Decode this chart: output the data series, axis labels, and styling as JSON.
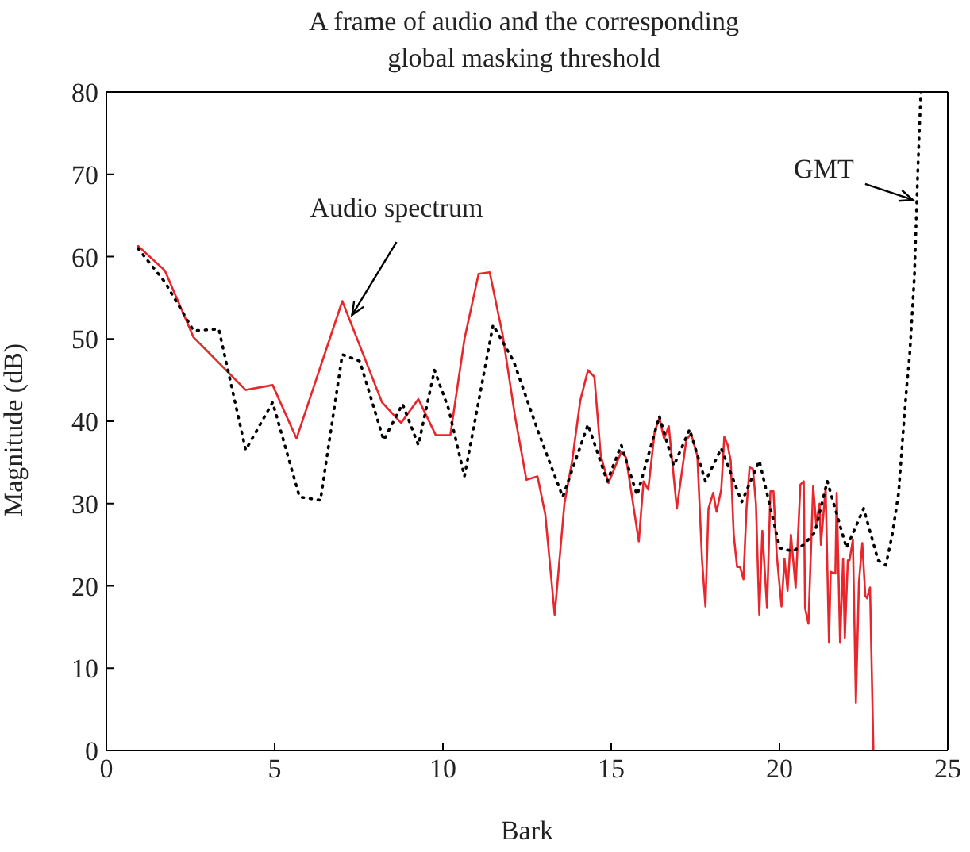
{
  "chart_data": {
    "type": "line",
    "title": "A frame of audio and the corresponding global masking threshold",
    "xlabel": "Bark",
    "ylabel": "Magnitude (dB)",
    "xlim": [
      0,
      25
    ],
    "xticks": [
      0,
      5,
      10,
      15,
      20,
      25
    ],
    "ylim": [
      0,
      80
    ],
    "yticks": [
      0,
      10,
      20,
      30,
      40,
      50,
      60,
      70,
      80
    ],
    "grid": false,
    "legend": false,
    "marker": "none",
    "series": [
      {
        "color": "#e8262b",
        "line_style": "solid",
        "x": [
          0.94,
          1.74,
          2.59,
          4.14,
          4.94,
          5.65,
          7.01,
          8.19,
          8.76,
          9.27,
          9.79,
          10.22,
          10.64,
          11.06,
          11.39,
          11.77,
          12.15,
          12.48,
          12.81,
          13.04,
          13.32,
          13.61,
          13.84,
          14.08,
          14.31,
          14.5,
          14.69,
          14.92,
          15.3,
          15.44,
          15.82,
          15.96,
          16.1,
          16.29,
          16.43,
          16.57,
          16.71,
          16.95,
          17.23,
          17.37,
          17.56,
          17.7,
          17.8,
          17.89,
          18.03,
          18.13,
          18.27,
          18.36,
          18.46,
          18.55,
          18.64,
          18.74,
          18.83,
          18.93,
          19.02,
          19.11,
          19.21,
          19.3,
          19.4,
          19.49,
          19.63,
          19.73,
          19.82,
          19.92,
          20.06,
          20.15,
          20.24,
          20.34,
          20.48,
          20.62,
          20.72,
          20.76,
          20.86,
          21,
          21.09,
          21.19,
          21.23,
          21.37,
          21.47,
          21.52,
          21.66,
          21.7,
          21.8,
          21.89,
          21.94,
          22.03,
          22.08,
          22.18,
          22.27,
          22.36,
          22.46,
          22.55,
          22.6,
          22.69,
          22.79
        ],
        "values": [
          61.3,
          58.3,
          50.2,
          43.8,
          44.4,
          37.9,
          54.6,
          42.3,
          39.8,
          42.7,
          38.3,
          38.3,
          50,
          57.9,
          58.1,
          50.6,
          40.4,
          32.9,
          33.3,
          28.7,
          16.5,
          30,
          35.2,
          42.5,
          46.2,
          45.4,
          35.8,
          32.5,
          36.3,
          35.6,
          25.4,
          32.7,
          31.7,
          38.7,
          40.4,
          37.9,
          39.4,
          29.4,
          37.7,
          38.5,
          35.8,
          23.1,
          17.5,
          29.4,
          31.3,
          29,
          31.7,
          38.1,
          37.1,
          35.2,
          26.2,
          22.3,
          22.3,
          20.8,
          29.4,
          34.4,
          34.2,
          30,
          16.5,
          26.7,
          17.3,
          31.5,
          31.5,
          23.7,
          17.5,
          23.3,
          19.4,
          26.2,
          19.8,
          32.3,
          32.7,
          17.3,
          15.4,
          32.1,
          27.5,
          30,
          25,
          31.9,
          13.1,
          21.7,
          21.5,
          31.3,
          13.1,
          23.3,
          13.7,
          23.1,
          23.1,
          25.6,
          5.8,
          20.4,
          25.2,
          18.8,
          18.5,
          19.8,
          0
        ]
      },
      {
        "color": "#000000",
        "line_style": "dotted",
        "x": [
          0.94,
          1.74,
          2.59,
          3.34,
          4.14,
          4.94,
          5.74,
          6.36,
          7.01,
          7.53,
          8.24,
          8.8,
          9.27,
          9.75,
          10.17,
          10.64,
          11.49,
          12.1,
          12.85,
          13.56,
          14.31,
          14.88,
          15.3,
          15.77,
          16.43,
          16.86,
          17.33,
          17.8,
          18.27,
          18.88,
          19.4,
          20.01,
          20.39,
          20.72,
          21.05,
          21.42,
          21.99,
          22.5,
          22.93,
          23.16,
          23.35,
          23.54,
          23.68,
          23.78,
          23.87,
          24.01,
          24.11,
          24.2
        ],
        "values": [
          61,
          56.9,
          51,
          51.2,
          36.5,
          42.3,
          30.8,
          30.4,
          48.1,
          47.3,
          37.7,
          42.1,
          37.1,
          46.2,
          41.5,
          33.3,
          51.7,
          47.3,
          38.5,
          30.8,
          39.6,
          32.7,
          37.1,
          31,
          40.6,
          34.6,
          39,
          32.7,
          36.7,
          30.2,
          35.2,
          24.6,
          24.2,
          25,
          26.5,
          32.7,
          24.6,
          29.4,
          23.1,
          22.5,
          26.2,
          31.3,
          39,
          44.2,
          48.1,
          57.7,
          70.4,
          80
        ]
      }
    ],
    "annotations": [
      {
        "text": "Audio spectrum",
        "x": 7.3,
        "y": 52.9
      },
      {
        "text": "GMT",
        "x": 23.96,
        "y": 66.9
      }
    ]
  }
}
